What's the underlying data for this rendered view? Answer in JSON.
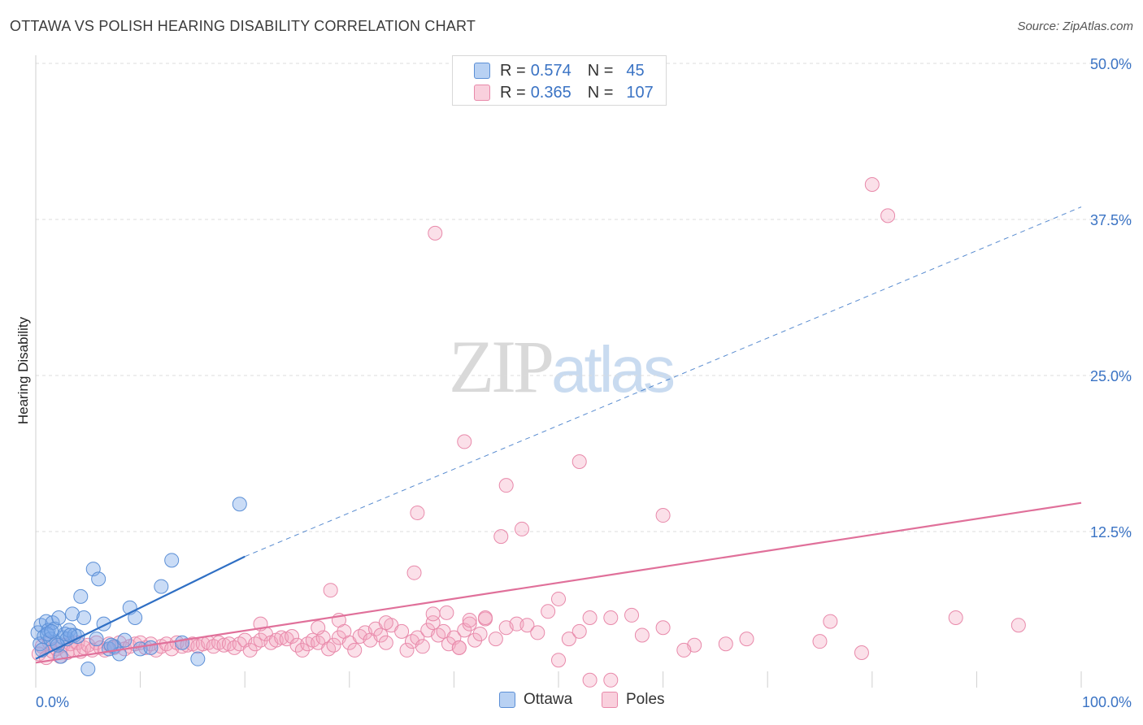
{
  "title": "OTTAWA VS POLISH HEARING DISABILITY CORRELATION CHART",
  "source": "Source: ZipAtlas.com",
  "watermark": {
    "zip": "ZIP",
    "atlas": "atlas"
  },
  "legend": {
    "rows": [
      {
        "r_label": "R =",
        "r_value": "0.574",
        "n_label": "N =",
        "n_value": "45",
        "color": "#7aa8e8"
      },
      {
        "r_label": "R =",
        "r_value": "0.365",
        "n_label": "N =",
        "n_value": "107",
        "color": "#f4a6c0"
      }
    ]
  },
  "bottom_legend": {
    "ottawa": "Ottawa",
    "poles": "Poles"
  },
  "chart_data": {
    "type": "scatter",
    "title": "OTTAWA VS POLISH HEARING DISABILITY CORRELATION CHART",
    "xlabel": "",
    "ylabel": "Hearing Disability",
    "xlim": [
      0,
      100
    ],
    "ylim": [
      0,
      50
    ],
    "x_tick_labels": [
      "0.0%",
      "100.0%"
    ],
    "y_ticks": [
      12.5,
      25.0,
      37.5,
      50.0
    ],
    "y_tick_labels": [
      "12.5%",
      "25.0%",
      "37.5%",
      "50.0%"
    ],
    "grid": true,
    "series": [
      {
        "name": "Ottawa",
        "color": "#7aa8e8",
        "edge": "#5b8fd6",
        "trend": {
          "x0": 0,
          "y0": 2.3,
          "x1": 20,
          "y1": 10.5,
          "color": "#2f6fc4",
          "dashed_extension_to_x": 100,
          "dashed_end_y": 38.5
        },
        "points": [
          [
            0.2,
            4.4
          ],
          [
            0.4,
            3.5
          ],
          [
            0.5,
            5.0
          ],
          [
            0.8,
            4.1
          ],
          [
            1.0,
            5.3
          ],
          [
            1.2,
            4.6
          ],
          [
            1.4,
            3.9
          ],
          [
            1.6,
            5.2
          ],
          [
            1.8,
            4.7
          ],
          [
            2.0,
            3.6
          ],
          [
            2.2,
            5.6
          ],
          [
            2.4,
            2.5
          ],
          [
            2.6,
            4.0
          ],
          [
            2.8,
            4.3
          ],
          [
            3.0,
            3.9
          ],
          [
            3.2,
            4.6
          ],
          [
            3.5,
            5.9
          ],
          [
            3.7,
            4.2
          ],
          [
            4.0,
            4.1
          ],
          [
            4.3,
            7.3
          ],
          [
            4.6,
            5.6
          ],
          [
            5.0,
            1.5
          ],
          [
            5.5,
            9.5
          ],
          [
            6.0,
            8.7
          ],
          [
            6.5,
            5.1
          ],
          [
            7.0,
            3.1
          ],
          [
            7.5,
            3.3
          ],
          [
            8.0,
            2.7
          ],
          [
            8.5,
            3.8
          ],
          [
            9.0,
            6.4
          ],
          [
            9.5,
            5.6
          ],
          [
            10.0,
            3.1
          ],
          [
            11.0,
            3.2
          ],
          [
            12.0,
            8.1
          ],
          [
            13.0,
            10.2
          ],
          [
            14.0,
            3.6
          ],
          [
            15.5,
            2.3
          ],
          [
            19.5,
            14.7
          ],
          [
            0.6,
            3.0
          ],
          [
            1.1,
            4.3
          ],
          [
            1.5,
            4.5
          ],
          [
            2.1,
            3.4
          ],
          [
            3.3,
            4.2
          ],
          [
            5.8,
            3.9
          ],
          [
            7.2,
            3.4
          ]
        ]
      },
      {
        "name": "Poles",
        "color": "#f4a6c0",
        "edge": "#e889aa",
        "trend": {
          "x0": 0,
          "y0": 2.0,
          "x1": 100,
          "y1": 14.8,
          "color": "#e0709a"
        },
        "points": [
          [
            0.3,
            2.7
          ],
          [
            0.6,
            3.3
          ],
          [
            1.0,
            2.4
          ],
          [
            1.3,
            3.6
          ],
          [
            1.6,
            2.9
          ],
          [
            2.0,
            3.1
          ],
          [
            2.3,
            2.5
          ],
          [
            2.6,
            3.4
          ],
          [
            3.0,
            2.8
          ],
          [
            3.3,
            3.5
          ],
          [
            3.6,
            3.0
          ],
          [
            4.0,
            3.6
          ],
          [
            4.3,
            2.9
          ],
          [
            4.6,
            3.2
          ],
          [
            5.0,
            3.4
          ],
          [
            5.4,
            3.0
          ],
          [
            5.8,
            3.6
          ],
          [
            6.2,
            3.2
          ],
          [
            6.6,
            3.0
          ],
          [
            7.0,
            3.5
          ],
          [
            7.5,
            3.2
          ],
          [
            8.0,
            3.6
          ],
          [
            8.5,
            3.1
          ],
          [
            9.0,
            3.3
          ],
          [
            9.5,
            3.5
          ],
          [
            10.0,
            3.6
          ],
          [
            10.5,
            3.2
          ],
          [
            11.0,
            3.5
          ],
          [
            11.5,
            3.0
          ],
          [
            12.0,
            3.3
          ],
          [
            12.5,
            3.5
          ],
          [
            13.0,
            3.1
          ],
          [
            13.5,
            3.6
          ],
          [
            14.0,
            3.3
          ],
          [
            14.5,
            3.4
          ],
          [
            15.0,
            3.5
          ],
          [
            15.5,
            3.3
          ],
          [
            16.0,
            3.5
          ],
          [
            16.5,
            3.6
          ],
          [
            17.0,
            3.3
          ],
          [
            17.5,
            3.6
          ],
          [
            18.0,
            3.4
          ],
          [
            18.5,
            3.5
          ],
          [
            19.0,
            3.2
          ],
          [
            19.5,
            3.5
          ],
          [
            20.0,
            3.8
          ],
          [
            20.5,
            3.0
          ],
          [
            21.0,
            3.5
          ],
          [
            21.5,
            3.8
          ],
          [
            22.0,
            4.3
          ],
          [
            22.5,
            3.6
          ],
          [
            23.0,
            3.8
          ],
          [
            23.5,
            4.0
          ],
          [
            24.0,
            3.9
          ],
          [
            24.5,
            4.1
          ],
          [
            25.0,
            3.4
          ],
          [
            25.5,
            3.0
          ],
          [
            26.0,
            3.5
          ],
          [
            26.5,
            3.8
          ],
          [
            27.0,
            3.6
          ],
          [
            27.5,
            4.0
          ],
          [
            28.0,
            3.1
          ],
          [
            28.5,
            3.4
          ],
          [
            29.0,
            4.0
          ],
          [
            29.5,
            4.5
          ],
          [
            30.0,
            3.6
          ],
          [
            30.5,
            3.0
          ],
          [
            31.0,
            4.1
          ],
          [
            31.5,
            4.4
          ],
          [
            32.0,
            3.8
          ],
          [
            32.5,
            4.7
          ],
          [
            33.0,
            4.2
          ],
          [
            33.5,
            3.6
          ],
          [
            34.0,
            5.0
          ],
          [
            35.0,
            4.5
          ],
          [
            35.5,
            3.0
          ],
          [
            36.0,
            3.7
          ],
          [
            36.5,
            4.0
          ],
          [
            37.0,
            3.3
          ],
          [
            37.5,
            4.6
          ],
          [
            38.0,
            5.2
          ],
          [
            38.5,
            4.2
          ],
          [
            39.0,
            4.5
          ],
          [
            39.5,
            3.5
          ],
          [
            40.0,
            4.0
          ],
          [
            40.5,
            3.2
          ],
          [
            41.0,
            4.6
          ],
          [
            41.5,
            5.1
          ],
          [
            42.0,
            3.8
          ],
          [
            42.5,
            4.3
          ],
          [
            43.0,
            5.5
          ],
          [
            44.0,
            3.9
          ],
          [
            45.0,
            4.8
          ],
          [
            46.0,
            5.1
          ],
          [
            47.0,
            5.0
          ],
          [
            48.0,
            4.4
          ],
          [
            49.0,
            6.1
          ],
          [
            50.0,
            7.1
          ],
          [
            51.0,
            3.9
          ],
          [
            52.0,
            4.5
          ],
          [
            53.0,
            5.6
          ],
          [
            55.0,
            5.6
          ],
          [
            57.0,
            5.8
          ],
          [
            60.0,
            4.8
          ],
          [
            63.0,
            3.4
          ],
          [
            66.0,
            3.5
          ],
          [
            68.0,
            3.9
          ]
        ],
        "outliers": [
          [
            80.0,
            40.3
          ],
          [
            81.5,
            37.8
          ],
          [
            38.2,
            36.4
          ],
          [
            41.0,
            19.7
          ],
          [
            52.0,
            18.1
          ],
          [
            45.0,
            16.2
          ],
          [
            36.5,
            14.0
          ],
          [
            60.0,
            13.8
          ],
          [
            44.5,
            12.1
          ],
          [
            46.5,
            12.7
          ],
          [
            28.2,
            7.8
          ],
          [
            36.2,
            9.2
          ],
          [
            21.5,
            5.1
          ],
          [
            27.0,
            4.8
          ],
          [
            29.0,
            5.4
          ],
          [
            33.5,
            5.2
          ],
          [
            38.0,
            5.9
          ],
          [
            39.3,
            6.0
          ],
          [
            41.5,
            5.4
          ],
          [
            43.0,
            5.6
          ],
          [
            50.0,
            2.2
          ],
          [
            53.0,
            0.6
          ],
          [
            55.0,
            0.6
          ],
          [
            58.0,
            4.2
          ],
          [
            62.0,
            3.0
          ],
          [
            75.0,
            3.7
          ],
          [
            76.0,
            5.3
          ],
          [
            88.0,
            5.6
          ],
          [
            94.0,
            5.0
          ],
          [
            79.0,
            2.8
          ],
          [
            40.5,
            3.2
          ]
        ]
      }
    ]
  }
}
